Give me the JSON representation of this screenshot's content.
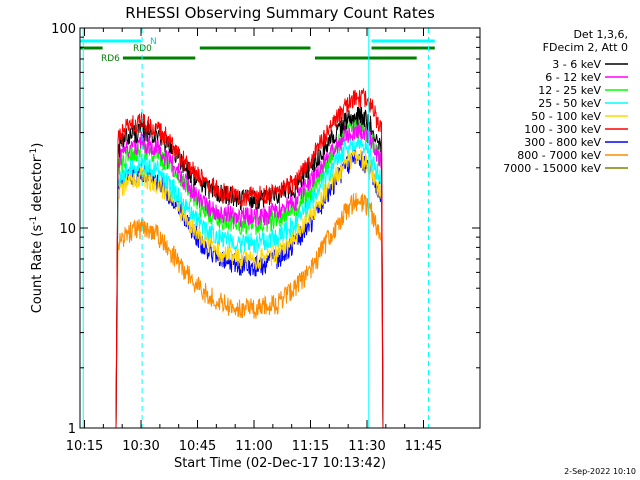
{
  "chart_data": {
    "type": "line",
    "title": "RHESSI Observing Summary Count Rates",
    "xlabel": "Start Time (02-Dec-17 10:13:42)",
    "ylabel": "Count Rate (s⁻¹ detector⁻¹)",
    "ylabel_parts": {
      "a": "Count Rate (s",
      "exp1": "-1",
      "b": " detector",
      "exp2": "-1",
      "c": ")"
    },
    "yscale": "log",
    "ylim": [
      1,
      100
    ],
    "xlim_minutes": [
      10.23,
      12.0
    ],
    "x_ticks": [
      {
        "minute": 10.25,
        "label": "10:15"
      },
      {
        "minute": 10.5,
        "label": "10:30"
      },
      {
        "minute": 10.75,
        "label": "10:45"
      },
      {
        "minute": 11.0,
        "label": "11:00"
      },
      {
        "minute": 11.25,
        "label": "11:15"
      },
      {
        "minute": 11.5,
        "label": "11:30"
      },
      {
        "minute": 11.75,
        "label": "11:45"
      }
    ],
    "y_ticks": [
      {
        "value": 1,
        "label": "1"
      },
      {
        "value": 10,
        "label": "10"
      },
      {
        "value": 100,
        "label": "100"
      }
    ],
    "legend_header": [
      "Det 1,3,6,",
      "FDecim 2, Att 0"
    ],
    "legend_position": "right",
    "footer_date": "2-Sep-2022 10:10",
    "flag_labels": {
      "N": "N",
      "RD0": "RD0",
      "RD6": "RD6"
    },
    "flag_bars": [
      {
        "name": "N",
        "color": "#00ffff",
        "segments": [
          [
            10.23,
            10.5
          ],
          [
            11.52,
            11.8
          ]
        ]
      },
      {
        "name": "RD0",
        "color": "#008000",
        "segments": [
          [
            10.23,
            10.33
          ],
          [
            10.76,
            11.25
          ],
          [
            11.52,
            11.8
          ]
        ]
      },
      {
        "name": "RD6",
        "color": "#008000",
        "segments": [
          [
            10.42,
            10.74
          ],
          [
            11.27,
            11.72
          ]
        ]
      }
    ],
    "vertical_lines": [
      {
        "minute": 10.244,
        "color": "#00ffff",
        "style": "solid"
      },
      {
        "minute": 10.505,
        "color": "#00ffff",
        "style": "dashed"
      },
      {
        "minute": 11.508,
        "color": "#00ffff",
        "style": "solid"
      },
      {
        "minute": 11.772,
        "color": "#00ffff",
        "style": "dashed"
      }
    ],
    "series": [
      {
        "name": "3 - 6 keV",
        "color": "#000000",
        "values": [
          [
            10.4,
            25
          ],
          [
            10.44,
            29
          ],
          [
            10.5,
            31
          ],
          [
            10.56,
            30
          ],
          [
            10.62,
            26
          ],
          [
            10.7,
            20
          ],
          [
            10.78,
            16
          ],
          [
            10.86,
            15
          ],
          [
            10.94,
            14
          ],
          [
            11.02,
            14
          ],
          [
            11.1,
            14.5
          ],
          [
            11.18,
            16
          ],
          [
            11.26,
            21
          ],
          [
            11.34,
            28
          ],
          [
            11.4,
            34
          ],
          [
            11.44,
            37
          ],
          [
            11.48,
            36
          ],
          [
            11.52,
            32
          ],
          [
            11.56,
            27
          ]
        ]
      },
      {
        "name": "6 - 12 keV",
        "color": "#ff00ff",
        "values": [
          [
            10.4,
            22
          ],
          [
            10.44,
            25
          ],
          [
            10.5,
            27
          ],
          [
            10.56,
            26
          ],
          [
            10.62,
            22
          ],
          [
            10.7,
            17
          ],
          [
            10.78,
            13
          ],
          [
            10.86,
            12
          ],
          [
            10.94,
            11.5
          ],
          [
            11.02,
            11.5
          ],
          [
            11.1,
            12
          ],
          [
            11.18,
            13.5
          ],
          [
            11.26,
            18
          ],
          [
            11.34,
            24
          ],
          [
            11.4,
            29
          ],
          [
            11.44,
            31
          ],
          [
            11.48,
            30
          ],
          [
            11.52,
            27
          ],
          [
            11.56,
            22
          ]
        ]
      },
      {
        "name": "12 - 25 keV",
        "color": "#00ff00",
        "values": [
          [
            10.4,
            20
          ],
          [
            10.44,
            23
          ],
          [
            10.5,
            25
          ],
          [
            10.56,
            24
          ],
          [
            10.62,
            21
          ],
          [
            10.7,
            16
          ],
          [
            10.78,
            12
          ],
          [
            10.86,
            11
          ],
          [
            10.94,
            10.5
          ],
          [
            11.02,
            10.5
          ],
          [
            11.1,
            11
          ],
          [
            11.18,
            12.5
          ],
          [
            11.26,
            16
          ],
          [
            11.34,
            23
          ],
          [
            11.4,
            30
          ],
          [
            11.44,
            32
          ],
          [
            11.48,
            31
          ],
          [
            11.52,
            27
          ],
          [
            11.56,
            22
          ]
        ]
      },
      {
        "name": "25 - 50 keV",
        "color": "#00ffff",
        "values": [
          [
            10.4,
            17
          ],
          [
            10.44,
            20
          ],
          [
            10.5,
            21
          ],
          [
            10.56,
            20
          ],
          [
            10.62,
            17
          ],
          [
            10.7,
            13
          ],
          [
            10.78,
            10
          ],
          [
            10.86,
            9
          ],
          [
            10.94,
            8.5
          ],
          [
            11.02,
            8.5
          ],
          [
            11.1,
            9
          ],
          [
            11.18,
            10.5
          ],
          [
            11.26,
            14
          ],
          [
            11.34,
            20
          ],
          [
            11.4,
            25
          ],
          [
            11.44,
            27
          ],
          [
            11.48,
            26
          ],
          [
            11.52,
            22
          ],
          [
            11.56,
            18
          ]
        ]
      },
      {
        "name": "50 - 100 keV",
        "color": "#ffd700",
        "values": [
          [
            10.4,
            15
          ],
          [
            10.44,
            17
          ],
          [
            10.5,
            18
          ],
          [
            10.56,
            17
          ],
          [
            10.62,
            15
          ],
          [
            10.7,
            11
          ],
          [
            10.78,
            8.5
          ],
          [
            10.86,
            7.5
          ],
          [
            10.94,
            7
          ],
          [
            11.02,
            7
          ],
          [
            11.1,
            7.5
          ],
          [
            11.18,
            9
          ],
          [
            11.26,
            12
          ],
          [
            11.34,
            17
          ],
          [
            11.4,
            21
          ],
          [
            11.44,
            23
          ],
          [
            11.48,
            22
          ],
          [
            11.52,
            19
          ],
          [
            11.56,
            15
          ]
        ]
      },
      {
        "name": "100 - 300 keV",
        "color": "#ff0000",
        "values": [
          [
            10.4,
            28
          ],
          [
            10.44,
            32
          ],
          [
            10.5,
            34
          ],
          [
            10.56,
            32
          ],
          [
            10.62,
            28
          ],
          [
            10.7,
            21
          ],
          [
            10.78,
            17
          ],
          [
            10.86,
            15
          ],
          [
            10.94,
            14.5
          ],
          [
            11.02,
            14.5
          ],
          [
            11.1,
            15
          ],
          [
            11.18,
            17
          ],
          [
            11.26,
            23
          ],
          [
            11.34,
            32
          ],
          [
            11.4,
            40
          ],
          [
            11.44,
            44
          ],
          [
            11.48,
            45
          ],
          [
            11.52,
            40
          ],
          [
            11.56,
            32
          ]
        ]
      },
      {
        "name": "300 - 800 keV",
        "color": "#0000ff",
        "values": [
          [
            10.4,
            16
          ],
          [
            10.44,
            18
          ],
          [
            10.5,
            19
          ],
          [
            10.56,
            18
          ],
          [
            10.62,
            15
          ],
          [
            10.7,
            11
          ],
          [
            10.78,
            8
          ],
          [
            10.86,
            7
          ],
          [
            10.94,
            6.5
          ],
          [
            11.02,
            6.5
          ],
          [
            11.1,
            7
          ],
          [
            11.18,
            8.5
          ],
          [
            11.26,
            11
          ],
          [
            11.34,
            16
          ],
          [
            11.4,
            20
          ],
          [
            11.44,
            22
          ],
          [
            11.48,
            22
          ],
          [
            11.52,
            19
          ],
          [
            11.56,
            15
          ]
        ]
      },
      {
        "name": "800 - 7000 keV",
        "color": "#ff8c00",
        "values": [
          [
            10.4,
            8.5
          ],
          [
            10.44,
            9.5
          ],
          [
            10.5,
            10
          ],
          [
            10.56,
            9.5
          ],
          [
            10.62,
            8
          ],
          [
            10.7,
            6
          ],
          [
            10.78,
            4.8
          ],
          [
            10.86,
            4.2
          ],
          [
            10.94,
            4
          ],
          [
            11.02,
            4
          ],
          [
            11.1,
            4.2
          ],
          [
            11.18,
            5
          ],
          [
            11.26,
            6.5
          ],
          [
            11.34,
            9.5
          ],
          [
            11.4,
            12
          ],
          [
            11.44,
            13.5
          ],
          [
            11.48,
            13.5
          ],
          [
            11.52,
            12
          ],
          [
            11.56,
            9
          ]
        ]
      },
      {
        "name": "7000 - 15000 keV",
        "color": "#808000",
        "values": []
      }
    ]
  }
}
